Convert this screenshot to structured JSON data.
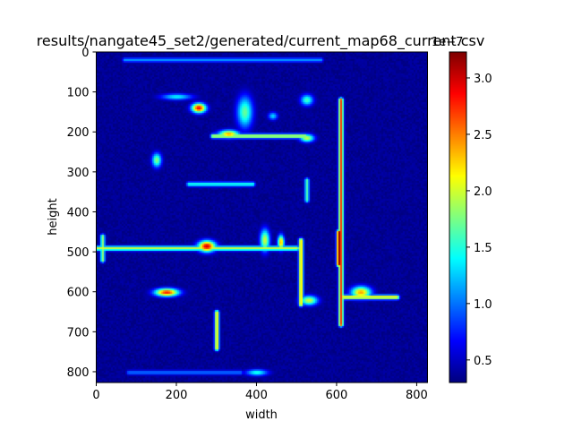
{
  "chart_data": {
    "type": "heatmap",
    "title": "results/nangate45_set2/generated/current_map68_current.csv",
    "xlabel": "width",
    "ylabel": "height",
    "x_range": [
      0,
      827
    ],
    "y_range": [
      0,
      827
    ],
    "y_inverted": true,
    "x_ticks": [
      0,
      200,
      400,
      600,
      800
    ],
    "y_ticks": [
      0,
      100,
      200,
      300,
      400,
      500,
      600,
      700,
      800
    ],
    "colormap": "jet",
    "colorbar": {
      "min": 0.3,
      "max": 3.23,
      "ticks": [
        0.5,
        1.0,
        1.5,
        2.0,
        2.5,
        3.0
      ],
      "tick_labels": [
        "0.5",
        "1.0",
        "1.5",
        "2.0",
        "2.5",
        "3.0"
      ],
      "scale_label": "1e−7"
    },
    "background_level": 0.3,
    "features": [
      {
        "shape": "hline",
        "x0": 0,
        "x1": 500,
        "y": 490,
        "value": 2.0
      },
      {
        "shape": "hline",
        "x0": 70,
        "x1": 560,
        "y": 20,
        "value": 1.1
      },
      {
        "shape": "hline",
        "x0": 290,
        "x1": 520,
        "y": 210,
        "value": 2.0
      },
      {
        "shape": "hline",
        "x0": 230,
        "x1": 390,
        "y": 330,
        "value": 1.5
      },
      {
        "shape": "hline",
        "x0": 610,
        "x1": 750,
        "y": 612,
        "value": 2.2
      },
      {
        "shape": "hline",
        "x0": 80,
        "x1": 360,
        "y": 800,
        "value": 1.0
      },
      {
        "shape": "vline",
        "x": 610,
        "y0": 120,
        "y1": 680,
        "value": 2.7
      },
      {
        "shape": "vline",
        "x": 605,
        "y0": 450,
        "y1": 530,
        "value": 3.2
      },
      {
        "shape": "vline",
        "x": 510,
        "y0": 470,
        "y1": 630,
        "value": 2.3
      },
      {
        "shape": "vline",
        "x": 300,
        "y0": 650,
        "y1": 740,
        "value": 2.2
      },
      {
        "shape": "vline",
        "x": 525,
        "y0": 320,
        "y1": 370,
        "value": 1.6
      },
      {
        "shape": "vline",
        "x": 15,
        "y0": 460,
        "y1": 520,
        "value": 1.8
      },
      {
        "shape": "blob",
        "x": 275,
        "y": 485,
        "rx": 22,
        "ry": 14,
        "value": 3.0
      },
      {
        "shape": "blob",
        "x": 175,
        "y": 600,
        "rx": 30,
        "ry": 10,
        "value": 2.8
      },
      {
        "shape": "blob",
        "x": 255,
        "y": 140,
        "rx": 18,
        "ry": 12,
        "value": 2.9
      },
      {
        "shape": "blob",
        "x": 330,
        "y": 205,
        "rx": 26,
        "ry": 10,
        "value": 2.4
      },
      {
        "shape": "blob",
        "x": 150,
        "y": 270,
        "rx": 12,
        "ry": 18,
        "value": 1.8
      },
      {
        "shape": "blob",
        "x": 400,
        "y": 800,
        "rx": 28,
        "ry": 8,
        "value": 1.5
      },
      {
        "shape": "blob",
        "x": 420,
        "y": 470,
        "rx": 12,
        "ry": 28,
        "value": 2.0
      },
      {
        "shape": "blob",
        "x": 525,
        "y": 215,
        "rx": 18,
        "ry": 10,
        "value": 2.0
      },
      {
        "shape": "blob",
        "x": 200,
        "y": 112,
        "rx": 40,
        "ry": 8,
        "value": 1.4
      },
      {
        "shape": "blob",
        "x": 525,
        "y": 120,
        "rx": 16,
        "ry": 14,
        "value": 1.6
      },
      {
        "shape": "blob",
        "x": 370,
        "y": 150,
        "rx": 20,
        "ry": 40,
        "value": 1.7
      },
      {
        "shape": "blob",
        "x": 530,
        "y": 620,
        "rx": 22,
        "ry": 12,
        "value": 2.0
      },
      {
        "shape": "blob",
        "x": 660,
        "y": 600,
        "rx": 25,
        "ry": 15,
        "value": 2.4
      },
      {
        "shape": "blob",
        "x": 440,
        "y": 160,
        "rx": 12,
        "ry": 10,
        "value": 1.3
      },
      {
        "shape": "blob",
        "x": 460,
        "y": 475,
        "rx": 8,
        "ry": 18,
        "value": 2.4
      }
    ]
  }
}
